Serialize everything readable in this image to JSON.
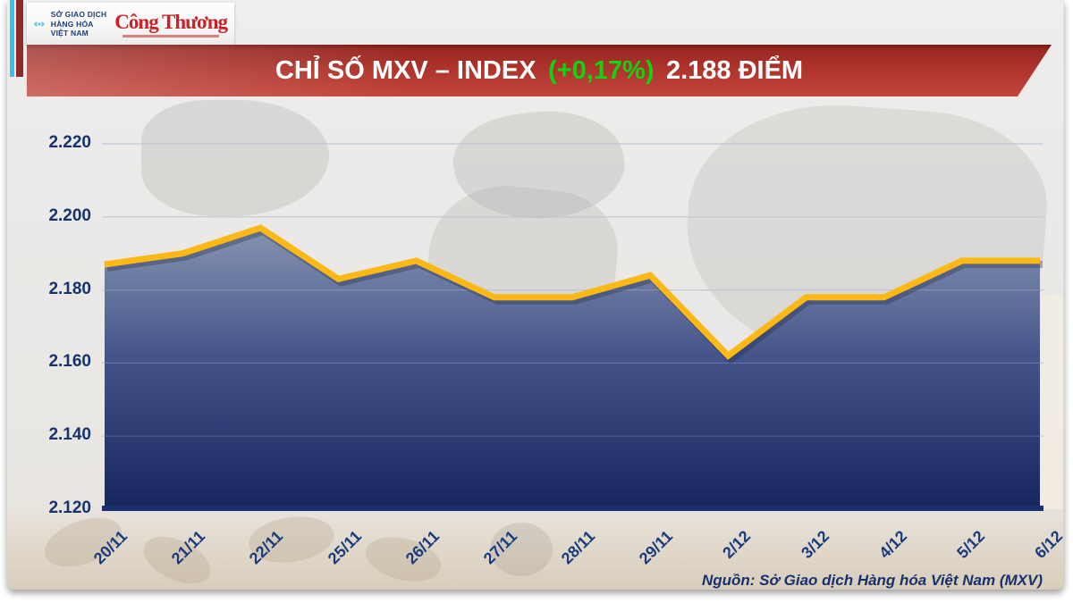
{
  "header": {
    "mxv_logo": {
      "lines": [
        "SỞ GIAO DỊCH",
        "HÀNG HÓA",
        "VIỆT NAM"
      ],
      "icon_color": "#2fb3e8"
    },
    "congthuong_logo": {
      "text": "Công Thương",
      "color": "#cc2128"
    }
  },
  "banner": {
    "title_prefix": "CHỈ SỐ MXV – INDEX",
    "change": "(+0,17%)",
    "value": "2.188 ĐIỂM",
    "change_color": "#12d312",
    "bg_color": "#a82e27"
  },
  "chart_data": {
    "type": "area",
    "title": "CHỈ SỐ MXV – INDEX (+0,17%) 2.188 ĐIỂM",
    "categories": [
      "20/11",
      "21/11",
      "22/11",
      "25/11",
      "26/11",
      "27/11",
      "28/11",
      "29/11",
      "2/12",
      "3/12",
      "4/12",
      "5/12",
      "6/12"
    ],
    "values": [
      2187,
      2190,
      2197,
      2183,
      2188,
      2178,
      2178,
      2184,
      2162,
      2178,
      2178,
      2188,
      2188
    ],
    "y_ticks": [
      "2.220",
      "2.200",
      "2.180",
      "2.160",
      "2.140",
      "2.120"
    ],
    "ylim": [
      2120,
      2220
    ],
    "xlabel": "",
    "ylabel": "",
    "grid": true,
    "legend": false,
    "line_color": "#fcb815",
    "area_top_color": "#8694b0",
    "area_bottom_color": "#16255e",
    "axis_color": "#1b2f6e",
    "label_color": "#17336e"
  },
  "footer": {
    "source": "Nguồn: Sở Giao dịch Hàng hóa Việt Nam (MXV)"
  }
}
